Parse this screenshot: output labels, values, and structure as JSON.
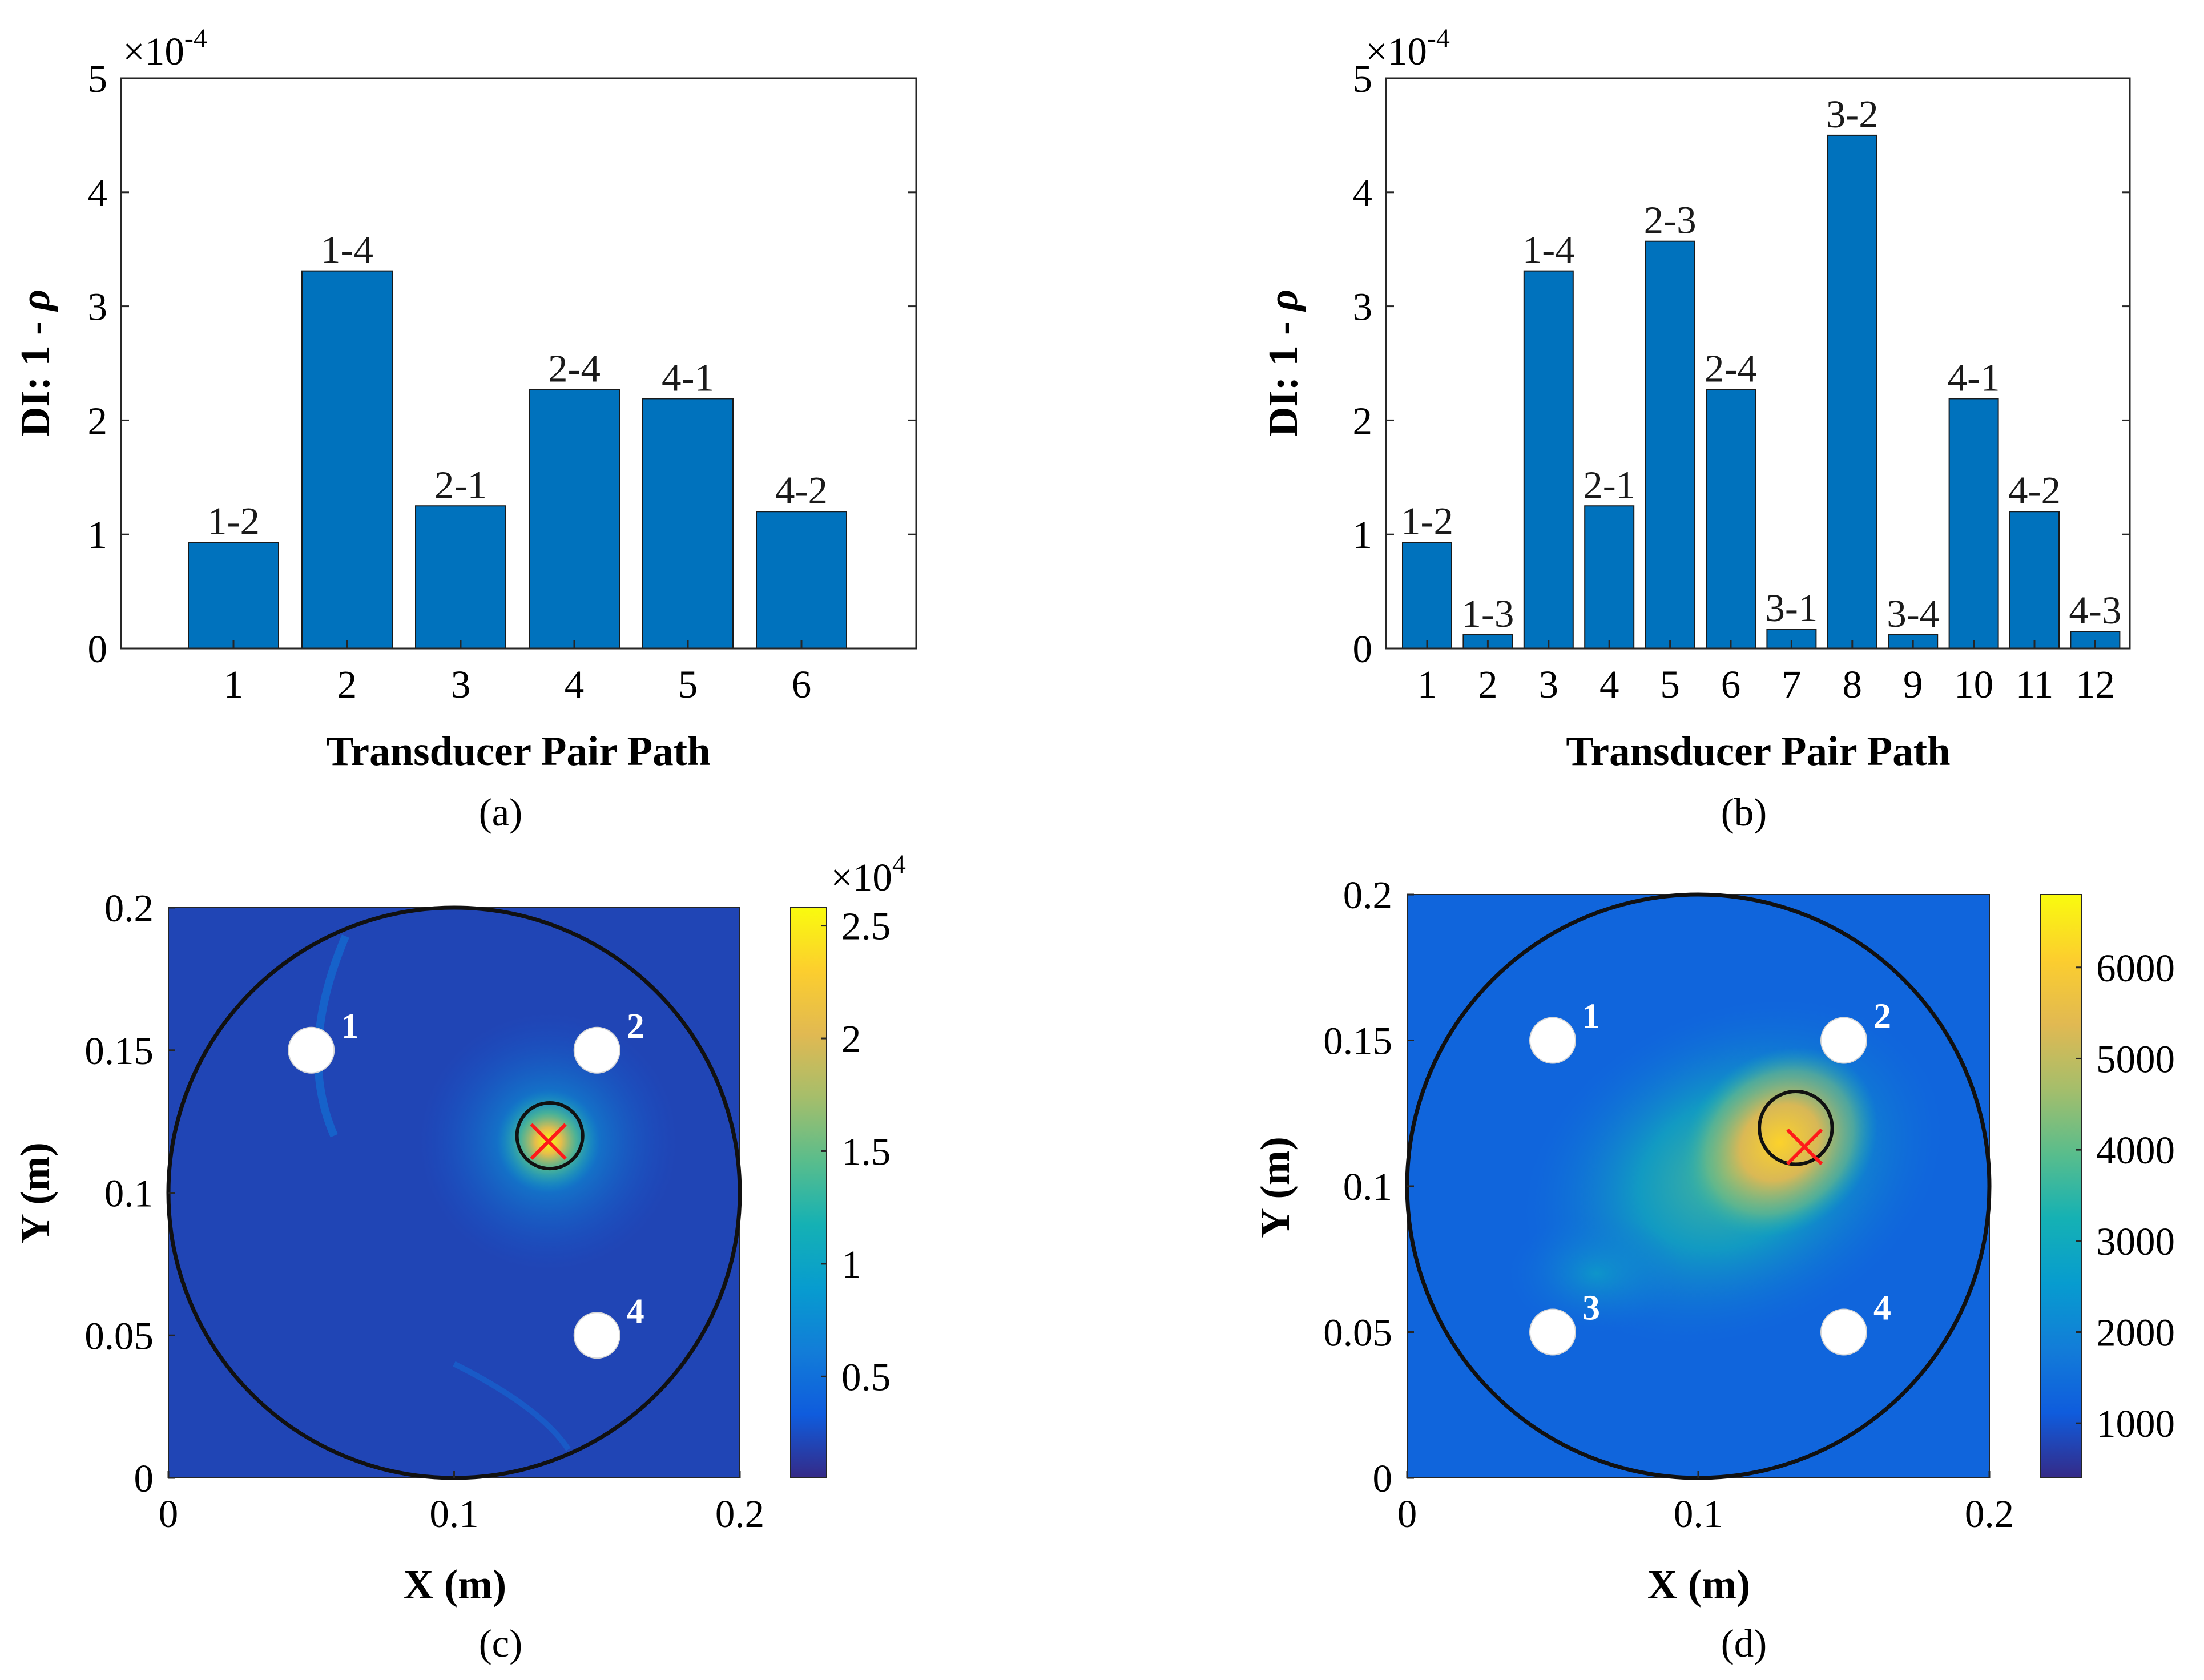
{
  "charts": [
    {
      "id": "a",
      "type": "bar",
      "caption": "(a)",
      "xlabel": "Transducer Pair Path",
      "ylabel": "DI: 1 - ρ",
      "ylabel_prefix": "DI: 1 - ",
      "ylabel_symbol": "ρ",
      "exponent_label": "×10",
      "exponent_power": "-4",
      "ylim": [
        0,
        5
      ],
      "yticks": [
        "0",
        "1",
        "2",
        "3",
        "4",
        "5"
      ],
      "categories": [
        "1",
        "2",
        "3",
        "4",
        "5",
        "6"
      ],
      "values": [
        0.93,
        3.31,
        1.25,
        2.27,
        2.19,
        1.2
      ],
      "bar_labels": [
        "1-2",
        "1-4",
        "2-1",
        "2-4",
        "4-1",
        "4-2"
      ],
      "bar_color": "#0072BD"
    },
    {
      "id": "b",
      "type": "bar",
      "caption": "(b)",
      "xlabel": "Transducer Pair Path",
      "ylabel": "DI: 1 - ρ",
      "ylabel_prefix": "DI: 1 - ",
      "ylabel_symbol": "ρ",
      "exponent_label": "×10",
      "exponent_power": "-4",
      "ylim": [
        0,
        5
      ],
      "yticks": [
        "0",
        "1",
        "2",
        "3",
        "4",
        "5"
      ],
      "categories": [
        "1",
        "2",
        "3",
        "4",
        "5",
        "6",
        "7",
        "8",
        "9",
        "10",
        "11",
        "12"
      ],
      "values": [
        0.93,
        0.12,
        3.31,
        1.25,
        3.57,
        2.27,
        0.17,
        4.5,
        0.12,
        2.19,
        1.2,
        0.15
      ],
      "bar_labels": [
        "1-2",
        "1-3",
        "1-4",
        "2-1",
        "2-3",
        "2-4",
        "3-1",
        "3-2",
        "3-4",
        "4-1",
        "4-2",
        "4-3"
      ],
      "bar_color": "#0072BD"
    },
    {
      "id": "c",
      "type": "heatmap",
      "caption": "(c)",
      "xlabel": "X (m)",
      "ylabel": "Y (m)",
      "xlim": [
        0,
        0.2
      ],
      "ylim": [
        0,
        0.2
      ],
      "xticks": [
        "0",
        "0.1",
        "0.2"
      ],
      "xtick_values": [
        0,
        0.1,
        0.2
      ],
      "yticks": [
        "0",
        "0.05",
        "0.1",
        "0.15",
        "0.2"
      ],
      "ytick_values": [
        0,
        0.05,
        0.1,
        0.15,
        0.2
      ],
      "colorbar_ticks": [
        "0.5",
        "1",
        "1.5",
        "2",
        "2.5"
      ],
      "colorbar_tick_values": [
        0.5,
        1,
        1.5,
        2,
        2.5
      ],
      "colorbar_range": [
        0.05,
        2.58
      ],
      "colorbar_exponent_label": "×10",
      "colorbar_exponent_power": "4",
      "plate_center": [
        0.1,
        0.1
      ],
      "plate_radius": 0.1,
      "sensors": [
        {
          "label": "1",
          "x": 0.05,
          "y": 0.15
        },
        {
          "label": "2",
          "x": 0.15,
          "y": 0.15
        },
        {
          "label": "4",
          "x": 0.15,
          "y": 0.05
        }
      ],
      "damage_circle": {
        "x": 0.1335,
        "y": 0.12,
        "r": 0.0115
      },
      "estimated_location": {
        "x": 0.133,
        "y": 0.118
      },
      "hotspot": {
        "x": 0.133,
        "y": 0.118,
        "peak": 1.0,
        "spread": 0.018
      }
    },
    {
      "id": "d",
      "type": "heatmap",
      "caption": "(d)",
      "xlabel": "X (m)",
      "ylabel": "Y (m)",
      "xlim": [
        0,
        0.2
      ],
      "ylim": [
        0,
        0.2
      ],
      "xticks": [
        "0",
        "0.1",
        "0.2"
      ],
      "xtick_values": [
        0,
        0.1,
        0.2
      ],
      "yticks": [
        "0",
        "0.05",
        "0.1",
        "0.15",
        "0.2"
      ],
      "ytick_values": [
        0,
        0.05,
        0.1,
        0.15,
        0.2
      ],
      "colorbar_ticks": [
        "1000",
        "2000",
        "3000",
        "4000",
        "5000",
        "6000"
      ],
      "colorbar_tick_values": [
        1000,
        2000,
        3000,
        4000,
        5000,
        6000
      ],
      "colorbar_range": [
        400,
        6800
      ],
      "plate_center": [
        0.1,
        0.1
      ],
      "plate_radius": 0.1,
      "sensors": [
        {
          "label": "1",
          "x": 0.05,
          "y": 0.15
        },
        {
          "label": "2",
          "x": 0.15,
          "y": 0.15
        },
        {
          "label": "3",
          "x": 0.05,
          "y": 0.05
        },
        {
          "label": "4",
          "x": 0.15,
          "y": 0.05
        }
      ],
      "damage_circle": {
        "x": 0.1335,
        "y": 0.12,
        "r": 0.0125
      },
      "estimated_location": {
        "x": 0.1365,
        "y": 0.1135
      },
      "hotspot": {
        "x": 0.128,
        "y": 0.115,
        "peak": 1.0,
        "spread": 0.045
      }
    }
  ]
}
